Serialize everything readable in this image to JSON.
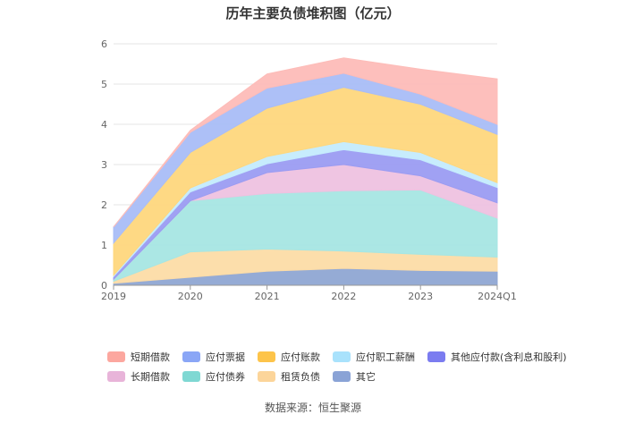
{
  "chart_data": {
    "type": "area",
    "stacked": true,
    "title": "历年主要负债堆积图（亿元）",
    "x": [
      "2019",
      "2020",
      "2021",
      "2022",
      "2023",
      "2024Q1"
    ],
    "ylim": [
      0,
      6
    ],
    "yticks": [
      "0",
      "1",
      "2",
      "3",
      "4",
      "5",
      "6"
    ],
    "grid": true,
    "legend_position": "bottom",
    "series": [
      {
        "name": "其它",
        "color": "#8fa6d3",
        "values": [
          0.05,
          0.2,
          0.35,
          0.42,
          0.37,
          0.35
        ]
      },
      {
        "name": "租赁负债",
        "color": "#fcdca7",
        "values": [
          0.05,
          0.63,
          0.55,
          0.43,
          0.4,
          0.35
        ]
      },
      {
        "name": "应付债券",
        "color": "#a6e6e3",
        "values": [
          0.05,
          1.27,
          1.38,
          1.5,
          1.6,
          0.97
        ]
      },
      {
        "name": "长期借款",
        "color": "#eec2e0",
        "values": [
          0.0,
          0.0,
          0.52,
          0.65,
          0.35,
          0.38
        ]
      },
      {
        "name": "其他应付款(含利息和股利)",
        "color": "#9b9cf2",
        "values": [
          0.07,
          0.22,
          0.22,
          0.37,
          0.4,
          0.38
        ]
      },
      {
        "name": "应付职工薪酬",
        "color": "#c4ebfd",
        "values": [
          0.03,
          0.1,
          0.18,
          0.2,
          0.18,
          0.12
        ]
      },
      {
        "name": "应付账款",
        "color": "#fed77d",
        "values": [
          0.8,
          0.88,
          1.2,
          1.35,
          1.2,
          1.2
        ]
      },
      {
        "name": "应付票据",
        "color": "#a9bdf7",
        "values": [
          0.4,
          0.5,
          0.5,
          0.35,
          0.25,
          0.25
        ]
      },
      {
        "name": "短期借款",
        "color": "#fdbcb8",
        "values": [
          0.0,
          0.05,
          0.35,
          0.38,
          0.62,
          1.13
        ]
      }
    ]
  },
  "legend_rows": [
    [
      {
        "label": "短期借款",
        "color": "#fca79f"
      },
      {
        "label": "应付票据",
        "color": "#8aa6f6"
      },
      {
        "label": "应付账款",
        "color": "#fdc44a"
      },
      {
        "label": "应付职工薪酬",
        "color": "#a9e2fc"
      },
      {
        "label": "其他应付款(含利息和股利)",
        "color": "#7b7cf0"
      }
    ],
    [
      {
        "label": "长期借款",
        "color": "#e8b4d9"
      },
      {
        "label": "应付债券",
        "color": "#7fd8d3"
      },
      {
        "label": "租赁负债",
        "color": "#fcd59a"
      },
      {
        "label": "其它",
        "color": "#8aa3d6"
      }
    ]
  ],
  "source": "数据来源：恒生聚源"
}
